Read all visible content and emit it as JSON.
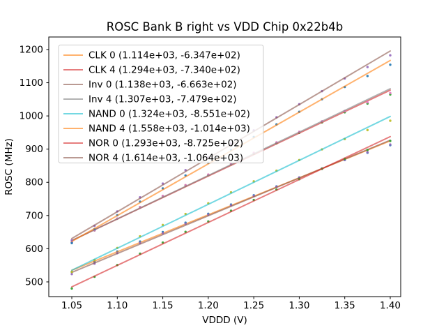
{
  "window": {
    "title": "ROSC Bank B right vs VDD Chip 0x22b4b"
  },
  "chart_data": {
    "type": "scatter",
    "title": "ROSC Bank B right vs VDD Chip 0x22b4b",
    "xlabel": "VDDD (V)",
    "ylabel": "ROSC (MHz)",
    "grid": false,
    "legend_position": "upper left",
    "xlim": [
      1.0247,
      1.4115
    ],
    "ylim": [
      455.7,
      1237.8
    ],
    "xticks": [
      1.05,
      1.1,
      1.15,
      1.2,
      1.25,
      1.3,
      1.35,
      1.4
    ],
    "xtick_labels": [
      "1.05",
      "1.10",
      "1.15",
      "1.20",
      "1.25",
      "1.30",
      "1.35",
      "1.40"
    ],
    "yticks": [
      500,
      600,
      700,
      800,
      900,
      1000,
      1100,
      1200
    ],
    "ytick_labels": [
      "500",
      "600",
      "700",
      "800",
      "900",
      "1000",
      "1100",
      "1200"
    ],
    "fit_x_range": [
      1.05,
      1.4
    ],
    "line_alpha": 0.6,
    "marker_alpha": 0.9,
    "x": [
      1.05,
      1.075,
      1.1,
      1.125,
      1.15,
      1.175,
      1.2,
      1.225,
      1.25,
      1.275,
      1.3,
      1.325,
      1.35,
      1.375,
      1.4
    ],
    "series": [
      {
        "name": "CLK 0",
        "legend_label": "CLK 0 (1.114e+03, -6.347e+02)",
        "fit_slope": 1114.0,
        "fit_intercept": -634.7,
        "line_color": "#ff7f0e",
        "marker_color": "#1f77b4",
        "y": [
          530.0,
          560.9,
          591.7,
          621.6,
          650.4,
          678.3,
          705.1,
          733.0,
          760.8,
          787.7,
          814.5,
          841.4,
          867.2,
          889.1,
          911.9
        ]
      },
      {
        "name": "CLK 4",
        "legend_label": "CLK 4 (1.294e+03, -7.340e+02)",
        "fit_slope": 1294.0,
        "fit_intercept": -734.0,
        "line_color": "#d62728",
        "marker_color": "#2ca02c",
        "y": [
          619.7,
          655.1,
          690.4,
          724.8,
          758.1,
          790.5,
          821.8,
          854.2,
          886.5,
          917.9,
          949.2,
          980.6,
          1010.9,
          1037.3,
          1064.6
        ]
      },
      {
        "name": "Inv 0",
        "legend_label": "Inv 0 (1.138e+03, -6.663e+02)",
        "fit_slope": 1138.0,
        "fit_intercept": -666.3,
        "line_color": "#8c564b",
        "marker_color": "#9467bd",
        "y": [
          523.6,
          555.1,
          586.5,
          617.0,
          646.4,
          674.9,
          702.3,
          730.8,
          759.2,
          786.7,
          814.1,
          841.6,
          868.0,
          890.5,
          913.9
        ]
      },
      {
        "name": "Inv 4",
        "legend_label": "Inv 4 (1.307e+03, -7.479e+02)",
        "fit_slope": 1307.0,
        "fit_intercept": -747.9,
        "line_color": "#7f7f7f",
        "marker_color": "#e377c2",
        "y": [
          619.5,
          655.1,
          690.8,
          725.5,
          759.2,
          791.8,
          823.5,
          856.2,
          888.9,
          920.5,
          952.2,
          983.9,
          1014.6,
          1041.2,
          1068.9
        ]
      },
      {
        "name": "NAND 0",
        "legend_label": "NAND 0 (1.324e+03, -8.551e+02)",
        "fit_slope": 1324.0,
        "fit_intercept": -855.1,
        "line_color": "#17becf",
        "marker_color": "#bcbd22",
        "y": [
          530.1,
          566.2,
          602.3,
          637.4,
          671.5,
          704.6,
          736.7,
          769.8,
          802.9,
          835.0,
          867.1,
          899.2,
          930.3,
          957.4,
          985.5
        ]
      },
      {
        "name": "NAND 4",
        "legend_label": "NAND 4 (1.558e+03, -1.014e+03)",
        "fit_slope": 1558.0,
        "fit_intercept": -1014.0,
        "line_color": "#ff7f0e",
        "marker_color": "#1f77b4",
        "y": [
          616.9,
          658.9,
          700.8,
          741.8,
          781.7,
          820.7,
          858.6,
          897.6,
          936.5,
          974.5,
          1012.4,
          1050.4,
          1087.3,
          1120.3,
          1154.2
        ]
      },
      {
        "name": "NOR 0",
        "legend_label": "NOR 0 (1.293e+03, -8.725e+02)",
        "fit_slope": 1293.0,
        "fit_intercept": -872.5,
        "line_color": "#d62728",
        "marker_color": "#2ca02c",
        "y": [
          480.2,
          515.5,
          550.8,
          585.1,
          618.5,
          650.8,
          682.1,
          714.4,
          746.8,
          778.1,
          809.4,
          840.7,
          871.1,
          897.4,
          924.7
        ]
      },
      {
        "name": "NOR 4",
        "legend_label": "NOR 4 (1.614e+03, -1.064e+03)",
        "fit_slope": 1614.0,
        "fit_intercept": -1064.0,
        "line_color": "#8c564b",
        "marker_color": "#9467bd",
        "y": [
          625.7,
          669.1,
          712.4,
          754.8,
          796.1,
          836.5,
          875.8,
          916.2,
          956.5,
          995.9,
          1035.2,
          1074.6,
          1112.9,
          1147.3,
          1182.6
        ]
      }
    ],
    "colors": {
      "spine": "#000000",
      "legend_border": "#cccccc",
      "legend_bg_alpha": 0.8,
      "background": "#ffffff"
    }
  }
}
